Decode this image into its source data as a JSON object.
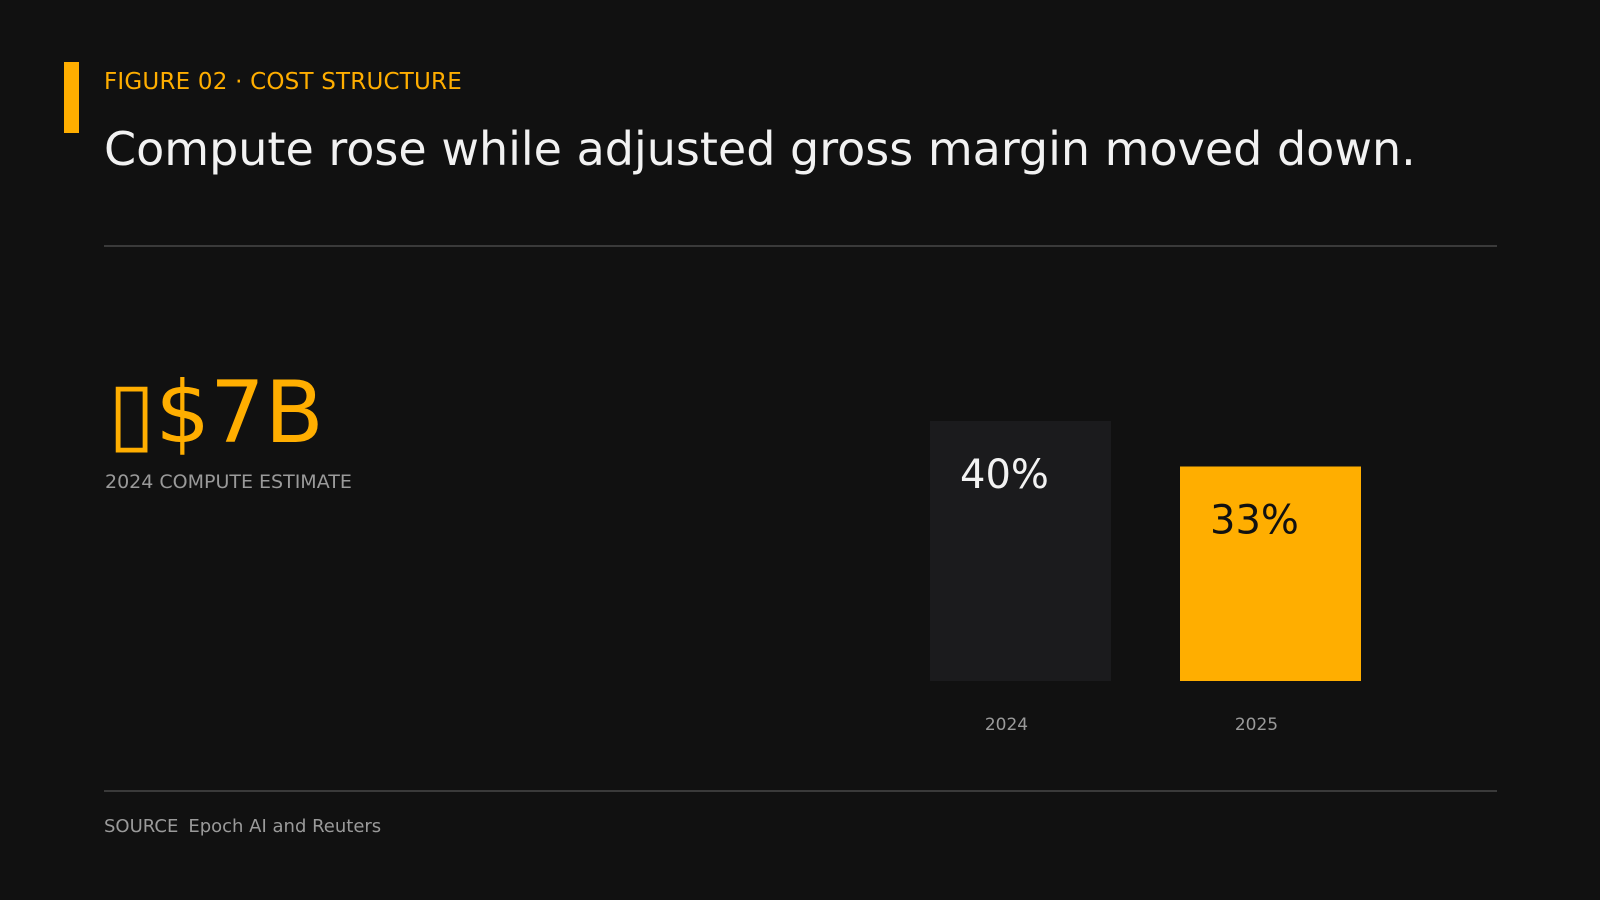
{
  "header": {
    "kicker": "FIGURE 02 · COST STRUCTURE",
    "title": "Compute rose while adjusted gross margin moved down."
  },
  "stat": {
    "value": "$7B",
    "label": "2024 COMPUTE ESTIMATE"
  },
  "source": {
    "key": "SOURCE",
    "text": "Epoch AI and Reuters"
  },
  "colors": {
    "background": "#111111",
    "accent": "#ffae00",
    "muted_bar": "#1b1b1d",
    "text_light": "#f2f2f2",
    "text_dark": "#111111",
    "text_muted": "#9a9a9a"
  },
  "chart_data": {
    "type": "bar",
    "title": "",
    "xlabel": "",
    "ylabel": "",
    "categories": [
      "2024",
      "2025"
    ],
    "values": [
      40,
      33
    ],
    "data_labels": [
      "40%",
      "33%"
    ],
    "unit": "%",
    "ylim": [
      0,
      52
    ],
    "grid": false,
    "highlight": "2025"
  }
}
